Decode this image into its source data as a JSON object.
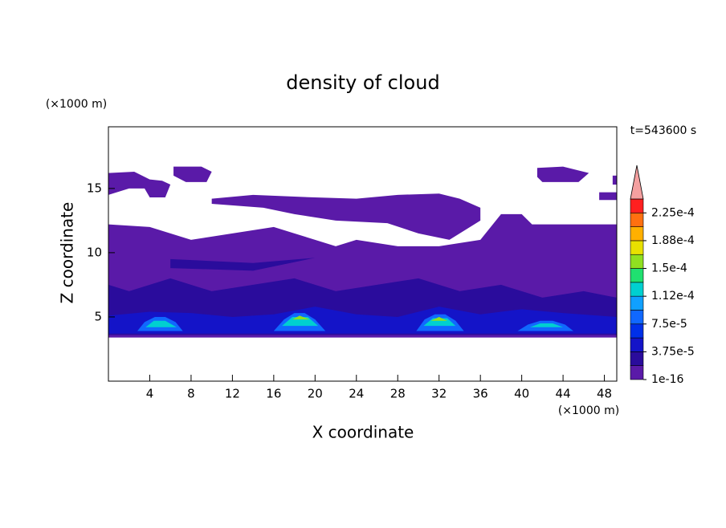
{
  "chart_data": {
    "type": "contour",
    "title": "density of cloud",
    "xlabel": "X coordinate",
    "ylabel": "Z coordinate",
    "xunit": "(×1000 m)",
    "yunit": "(×1000 m)",
    "time_label": "t=543600 s",
    "xlim": [
      0,
      49.2
    ],
    "ylim": [
      0,
      19.8
    ],
    "xticks": [
      4,
      8,
      12,
      16,
      20,
      24,
      28,
      32,
      36,
      40,
      44,
      48
    ],
    "yticks": [
      5,
      10,
      15
    ],
    "colorbar": {
      "levels": [
        1e-16,
        1.875e-05,
        3.75e-05,
        5.625e-05,
        7.5e-05,
        9.375e-05,
        0.0001125,
        0.00013125,
        0.00015,
        0.00016875,
        0.0001875,
        0.00020625,
        0.000225,
        0.00024375
      ],
      "colors": [
        "#5a1aa8",
        "#2a0c9c",
        "#1414c8",
        "#0030e8",
        "#1068ff",
        "#10a0ff",
        "#00d0d0",
        "#20e070",
        "#90e020",
        "#e8e000",
        "#ffb000",
        "#ff7010",
        "#ff2020"
      ],
      "extend_color": "#f4a0a0",
      "ticks": [
        {
          "value": 1e-16,
          "label": "1e-16"
        },
        {
          "value": 3.75e-05,
          "label": "3.75e-5"
        },
        {
          "value": 7.5e-05,
          "label": "7.5e-5"
        },
        {
          "value": 0.0001125,
          "label": "1.12e-4"
        },
        {
          "value": 0.00015,
          "label": "1.5e-4"
        },
        {
          "value": 0.0001875,
          "label": "1.88e-4"
        },
        {
          "value": 0.000225,
          "label": "2.25e-4"
        }
      ]
    },
    "regions": [
      {
        "level": 1e-16,
        "x": [
          0,
          49.2,
          49.2,
          45,
          41,
          40,
          38,
          36,
          32,
          28,
          24,
          22,
          20,
          18,
          16,
          12,
          8,
          4,
          0
        ],
        "y": [
          3.4,
          3.4,
          12.2,
          12.2,
          12.2,
          13,
          13,
          11,
          10.5,
          10.5,
          11,
          10.5,
          11,
          11.5,
          12,
          11.5,
          11,
          12,
          12.2
        ]
      },
      {
        "level": 1e-16,
        "x": [
          10,
          14,
          20,
          24,
          28,
          32,
          34,
          36,
          36,
          33,
          30,
          27,
          22,
          18,
          15,
          10
        ],
        "y": [
          14.2,
          14.5,
          14.3,
          14.2,
          14.5,
          14.6,
          14.2,
          13.5,
          12.5,
          11,
          11.5,
          12.3,
          12.5,
          13,
          13.5,
          13.8
        ]
      },
      {
        "level": 1e-16,
        "x": [
          0,
          2.5,
          4,
          5.2,
          6,
          5.5,
          4,
          3.5,
          2,
          0
        ],
        "y": [
          16.2,
          16.3,
          15.7,
          15.6,
          15.3,
          14.3,
          14.3,
          15,
          15,
          14.5
        ]
      },
      {
        "level": 1e-16,
        "x": [
          6.3,
          9,
          10,
          9.5,
          7.5,
          6.3
        ],
        "y": [
          16.7,
          16.7,
          16.3,
          15.5,
          15.5,
          16
        ]
      },
      {
        "level": 1e-16,
        "x": [
          41.5,
          44,
          46.5,
          45.5,
          42,
          41.5
        ],
        "y": [
          16.6,
          16.7,
          16.2,
          15.5,
          15.5,
          15.9
        ]
      },
      {
        "level": 1e-16,
        "x": [
          47.5,
          49.2,
          49.2,
          47.5
        ],
        "y": [
          14.7,
          14.7,
          14.1,
          14.1
        ]
      },
      {
        "level": 1e-16,
        "x": [
          49.2,
          48.8,
          48.8,
          49.2
        ],
        "y": [
          16,
          16,
          15.3,
          15.3
        ]
      },
      {
        "level": 1.875e-05,
        "x": [
          0,
          49.2,
          49.2,
          46,
          42,
          38,
          34,
          30,
          26,
          22,
          18,
          14,
          10,
          6,
          2,
          0
        ],
        "y": [
          3.6,
          3.6,
          6.5,
          7,
          6.5,
          7.5,
          7,
          8,
          7.5,
          7,
          8,
          7.5,
          7,
          8,
          7,
          7.5
        ]
      },
      {
        "level": 1.875e-05,
        "x": [
          6,
          14,
          20,
          14,
          6
        ],
        "y": [
          9.5,
          9.2,
          9.6,
          8.6,
          8.8
        ]
      },
      {
        "level": 3.75e-05,
        "x": [
          0,
          49.2,
          49.2,
          44,
          40,
          36,
          32,
          28,
          24,
          20,
          16,
          12,
          8,
          4,
          0
        ],
        "y": [
          3.7,
          3.7,
          5,
          5.3,
          5.6,
          5.2,
          5.8,
          5,
          5.2,
          5.8,
          5.2,
          5,
          5.3,
          5.4,
          5.1
        ]
      },
      {
        "level": 7.5e-05,
        "x": [
          2.8,
          3.5,
          4.5,
          5.5,
          6.5,
          7.2
        ],
        "y": [
          3.9,
          4.6,
          5,
          5,
          4.6,
          3.9
        ]
      },
      {
        "level": 7.5e-05,
        "x": [
          16,
          17,
          18,
          19,
          20,
          21
        ],
        "y": [
          3.9,
          4.8,
          5.3,
          5.3,
          4.8,
          3.9
        ]
      },
      {
        "level": 7.5e-05,
        "x": [
          29.8,
          30.6,
          31.6,
          32.6,
          33.6,
          34.4
        ],
        "y": [
          3.9,
          4.8,
          5.2,
          5.2,
          4.7,
          3.9
        ]
      },
      {
        "level": 7.5e-05,
        "x": [
          39.6,
          40.6,
          41.8,
          43,
          44.2,
          45
        ],
        "y": [
          3.9,
          4.4,
          4.7,
          4.7,
          4.4,
          3.9
        ]
      },
      {
        "level": 0.0001125,
        "x": [
          3.6,
          4.4,
          5.5,
          6.6
        ],
        "y": [
          4.2,
          4.7,
          4.7,
          4.2
        ]
      },
      {
        "level": 0.0001125,
        "x": [
          16.8,
          17.8,
          19.3,
          20.3
        ],
        "y": [
          4.3,
          5,
          5,
          4.3
        ]
      },
      {
        "level": 0.0001125,
        "x": [
          30.5,
          31.4,
          32.8,
          33.6
        ],
        "y": [
          4.3,
          4.9,
          4.9,
          4.3
        ]
      },
      {
        "level": 0.0001125,
        "x": [
          40.8,
          41.8,
          43,
          44
        ],
        "y": [
          4.2,
          4.5,
          4.5,
          4.2
        ]
      },
      {
        "level": 0.00015,
        "x": [
          17.8,
          18.5,
          19.5
        ],
        "y": [
          4.8,
          5.1,
          4.8
        ]
      },
      {
        "level": 0.00015,
        "x": [
          31.2,
          32,
          32.8
        ],
        "y": [
          4.7,
          5,
          4.7
        ]
      }
    ]
  }
}
